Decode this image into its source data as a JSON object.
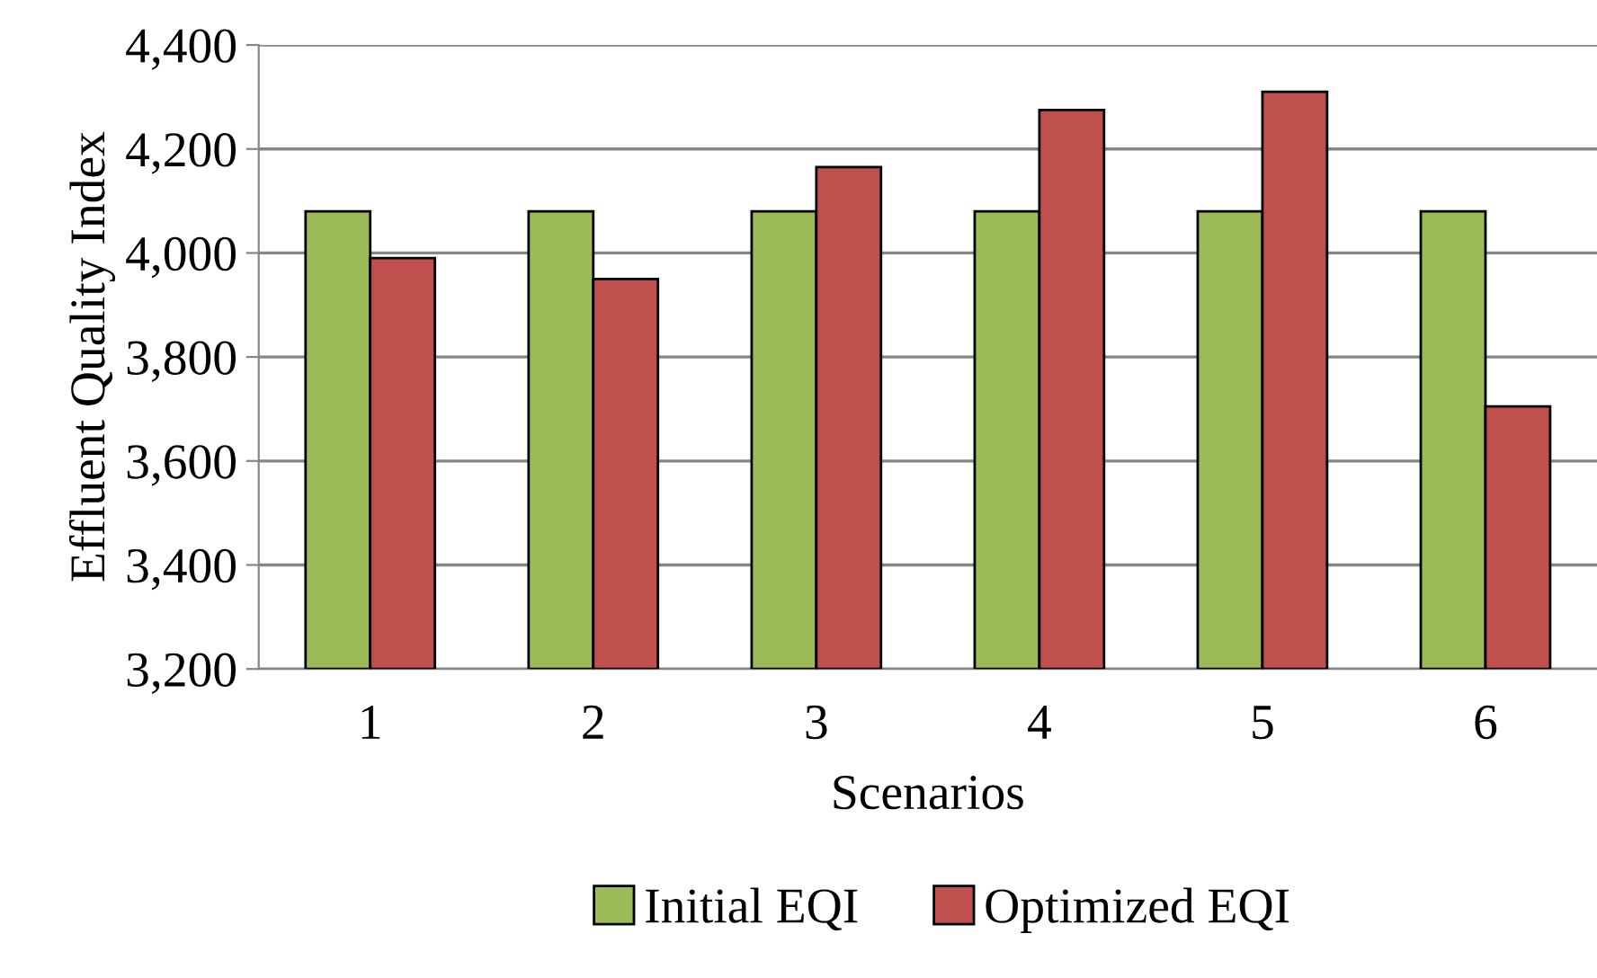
{
  "chart_data": {
    "type": "bar",
    "xlabel": "Scenarios",
    "ylabel": "Effluent Quality Index",
    "categories": [
      "1",
      "2",
      "3",
      "4",
      "5",
      "6"
    ],
    "series": [
      {
        "name": "Initial EQI",
        "color": "#9bbb59",
        "values": [
          4080,
          4080,
          4080,
          4080,
          4080,
          4080
        ]
      },
      {
        "name": "Optimized EQI",
        "color": "#c0504d",
        "values": [
          3990,
          3950,
          4165,
          4275,
          4310,
          3705
        ]
      }
    ],
    "ylim": [
      3200,
      4400
    ],
    "yticks": [
      {
        "value": 3200,
        "label": "3,200"
      },
      {
        "value": 3400,
        "label": "3,400"
      },
      {
        "value": 3600,
        "label": "3,600"
      },
      {
        "value": 3800,
        "label": "3,800"
      },
      {
        "value": 4000,
        "label": "4,000"
      },
      {
        "value": 4200,
        "label": "4,200"
      },
      {
        "value": 4400,
        "label": "4,400"
      }
    ],
    "grid": "y",
    "legend": "bottom"
  }
}
